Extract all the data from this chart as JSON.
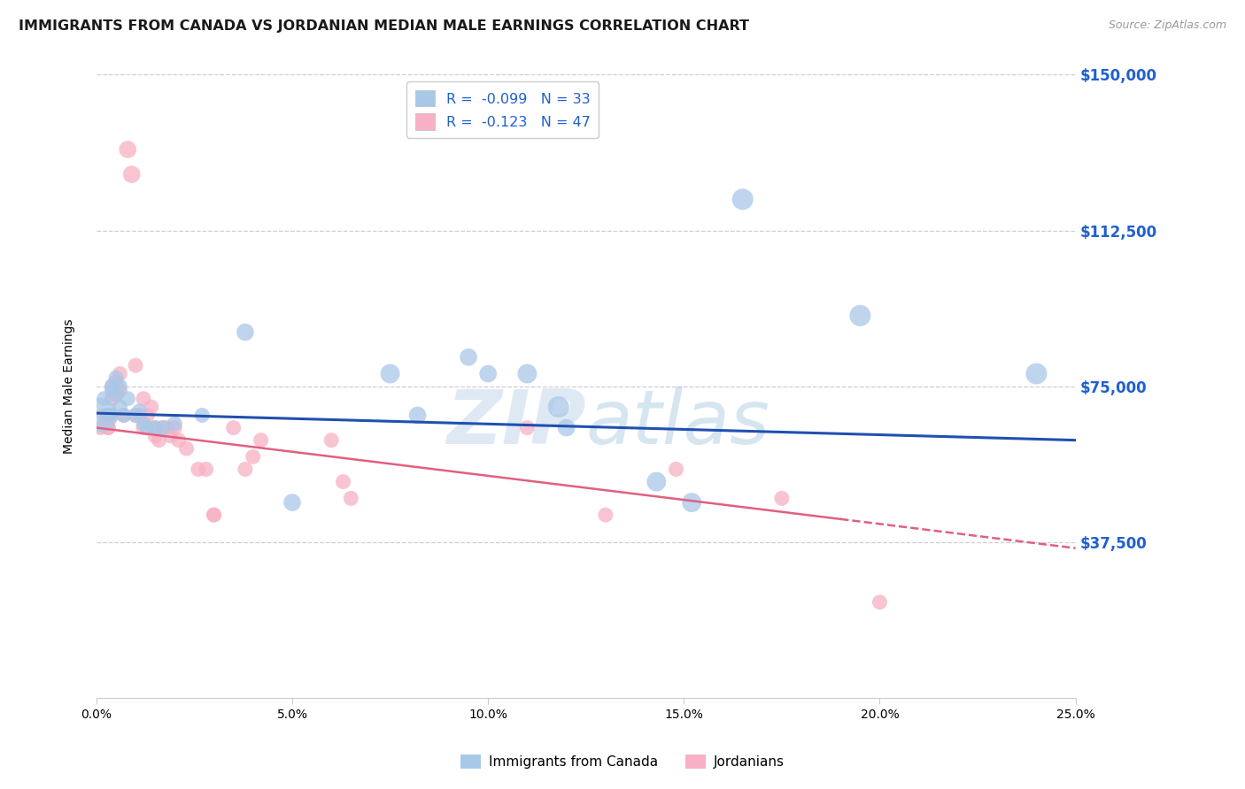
{
  "title": "IMMIGRANTS FROM CANADA VS JORDANIAN MEDIAN MALE EARNINGS CORRELATION CHART",
  "source": "Source: ZipAtlas.com",
  "ylabel": "Median Male Earnings",
  "watermark": "ZIPatlas",
  "legend1_label": "Immigrants from Canada",
  "legend2_label": "Jordanians",
  "r1": -0.099,
  "n1": 33,
  "r2": -0.123,
  "n2": 47,
  "color1": "#a8c8e8",
  "color2": "#f8b0c4",
  "trend1_color": "#2050b0",
  "trend2_color": "#e06080",
  "xmin": 0.0,
  "xmax": 0.25,
  "ymin": 0,
  "ymax": 150000,
  "yticks_right": [
    37500,
    75000,
    112500,
    150000
  ],
  "xticks": [
    0.0,
    0.05,
    0.1,
    0.15,
    0.2,
    0.25
  ],
  "canada_x": [
    0.001,
    0.002,
    0.003,
    0.004,
    0.004,
    0.005,
    0.005,
    0.006,
    0.006,
    0.007,
    0.008,
    0.01,
    0.011,
    0.012,
    0.013,
    0.015,
    0.017,
    0.02,
    0.027,
    0.038,
    0.05,
    0.075,
    0.082,
    0.095,
    0.1,
    0.11,
    0.118,
    0.143,
    0.152,
    0.165,
    0.195,
    0.24,
    0.12
  ],
  "canada_y": [
    68000,
    72000,
    68000,
    75000,
    74000,
    77000,
    73000,
    75000,
    70000,
    68000,
    72000,
    68000,
    69000,
    66000,
    65000,
    65000,
    65000,
    66000,
    68000,
    88000,
    47000,
    78000,
    68000,
    82000,
    78000,
    78000,
    70000,
    52000,
    47000,
    120000,
    92000,
    78000,
    65000
  ],
  "canada_s": [
    800,
    150,
    150,
    150,
    150,
    150,
    150,
    150,
    150,
    150,
    150,
    150,
    150,
    150,
    150,
    150,
    150,
    150,
    150,
    200,
    200,
    250,
    200,
    200,
    200,
    250,
    300,
    250,
    250,
    300,
    300,
    300,
    200
  ],
  "jordan_x": [
    0.001,
    0.002,
    0.003,
    0.003,
    0.003,
    0.004,
    0.004,
    0.004,
    0.005,
    0.005,
    0.006,
    0.006,
    0.007,
    0.008,
    0.009,
    0.01,
    0.01,
    0.011,
    0.012,
    0.012,
    0.013,
    0.014,
    0.015,
    0.015,
    0.016,
    0.017,
    0.018,
    0.019,
    0.02,
    0.021,
    0.023,
    0.026,
    0.028,
    0.03,
    0.03,
    0.035,
    0.038,
    0.04,
    0.042,
    0.06,
    0.063,
    0.065,
    0.11,
    0.13,
    0.148,
    0.175,
    0.2
  ],
  "jordan_y": [
    65000,
    68000,
    68000,
    65000,
    65000,
    75000,
    72000,
    68000,
    76000,
    73000,
    78000,
    74000,
    68000,
    132000,
    126000,
    80000,
    68000,
    68000,
    72000,
    65000,
    68000,
    70000,
    65000,
    63000,
    62000,
    65000,
    65000,
    63000,
    65000,
    62000,
    60000,
    55000,
    55000,
    44000,
    44000,
    65000,
    55000,
    58000,
    62000,
    62000,
    52000,
    48000,
    65000,
    44000,
    55000,
    48000,
    23000
  ],
  "jordan_s": [
    150,
    150,
    150,
    150,
    150,
    150,
    150,
    150,
    150,
    150,
    150,
    150,
    150,
    200,
    200,
    150,
    150,
    150,
    150,
    150,
    150,
    150,
    150,
    150,
    150,
    150,
    150,
    150,
    150,
    150,
    150,
    150,
    150,
    150,
    150,
    150,
    150,
    150,
    150,
    150,
    150,
    150,
    150,
    150,
    150,
    150,
    150
  ],
  "background_color": "#ffffff",
  "grid_color": "#ccccdd",
  "title_fontsize": 11.5,
  "axis_label_fontsize": 10,
  "tick_fontsize": 10,
  "right_tick_color": "#2060d0",
  "source_fontsize": 9
}
